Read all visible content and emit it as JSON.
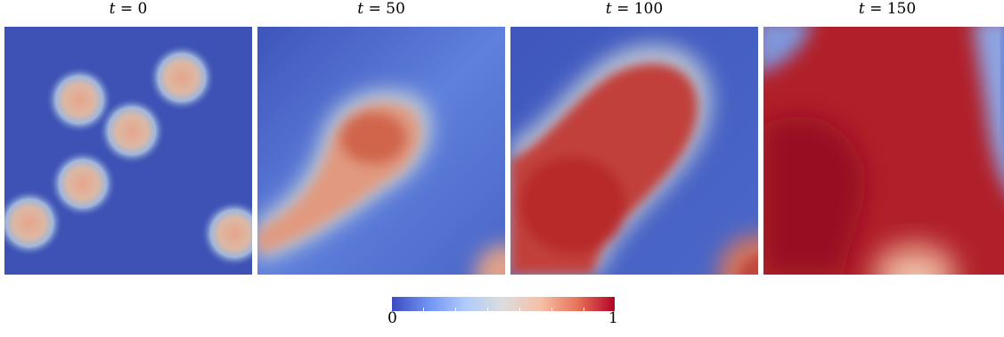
{
  "panels": [
    {
      "title_var": "t",
      "title_eq": " = 0"
    },
    {
      "title_var": "t",
      "title_eq": " = 50"
    },
    {
      "title_var": "t",
      "title_eq": " = 100"
    },
    {
      "title_var": "t",
      "title_eq": " = 150"
    }
  ],
  "colorbar": {
    "min_label": "0",
    "max_label": "1",
    "colormap": "coolwarm",
    "colors": [
      "#3b4cc0",
      "#7396f5",
      "#b0cbfc",
      "#dddddd",
      "#f6bfa6",
      "#e7745b",
      "#b40426"
    ]
  }
}
